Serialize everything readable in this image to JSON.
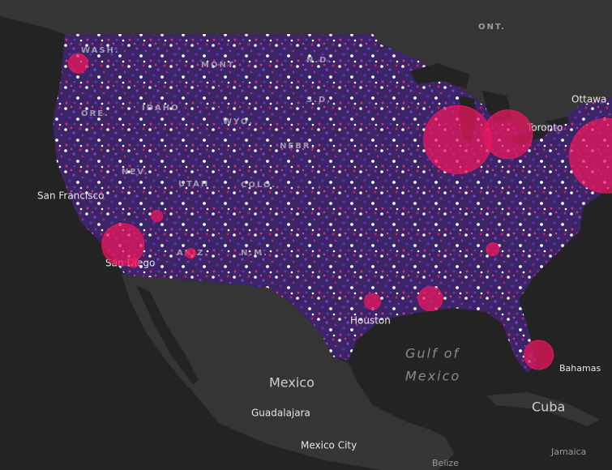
{
  "labels": {
    "canada": "ONT.",
    "ottawa": "Ottawa",
    "toronto": "Toronto",
    "states": [
      "WASH.",
      "MONT.",
      "N.D.",
      "ORE.",
      "IDAHO",
      "WYO.",
      "S.D.",
      "NEBR.",
      "NEV.",
      "UTAH",
      "COLO.",
      "ARIZ.",
      "N.M."
    ],
    "san_francisco": "San Francisco",
    "san_diego": "San Diego",
    "houston": "Houston",
    "gulf": [
      "Gulf of",
      "Mexico"
    ],
    "mexico": "Mexico",
    "guadalajara": "Guadalajara",
    "mexico_city": "Mexico City",
    "cuba": "Cuba",
    "bahamas": "Bahamas",
    "jamaica": "Jamaica",
    "belize": "Belize"
  },
  "bubbles": {
    "color": "#e8175d",
    "points": [
      {
        "lon": -122.3,
        "lat": 47.6,
        "size": 12
      },
      {
        "lon": -118.2,
        "lat": 34.05,
        "size": 26
      },
      {
        "lon": -87.6,
        "lat": 41.9,
        "size": 42
      },
      {
        "lon": -83.0,
        "lat": 42.3,
        "size": 30
      },
      {
        "lon": -74.0,
        "lat": 40.7,
        "size": 46
      },
      {
        "lon": -95.4,
        "lat": 29.8,
        "size": 10
      },
      {
        "lon": -90.1,
        "lat": 30.0,
        "size": 15
      },
      {
        "lon": -80.2,
        "lat": 25.8,
        "size": 18
      },
      {
        "lon": -112.0,
        "lat": 33.4,
        "size": 6
      },
      {
        "lon": -115.1,
        "lat": 36.2,
        "size": 7
      },
      {
        "lon": -117.2,
        "lat": 32.7,
        "size": 6
      },
      {
        "lon": -84.4,
        "lat": 33.7,
        "size": 8
      }
    ]
  }
}
